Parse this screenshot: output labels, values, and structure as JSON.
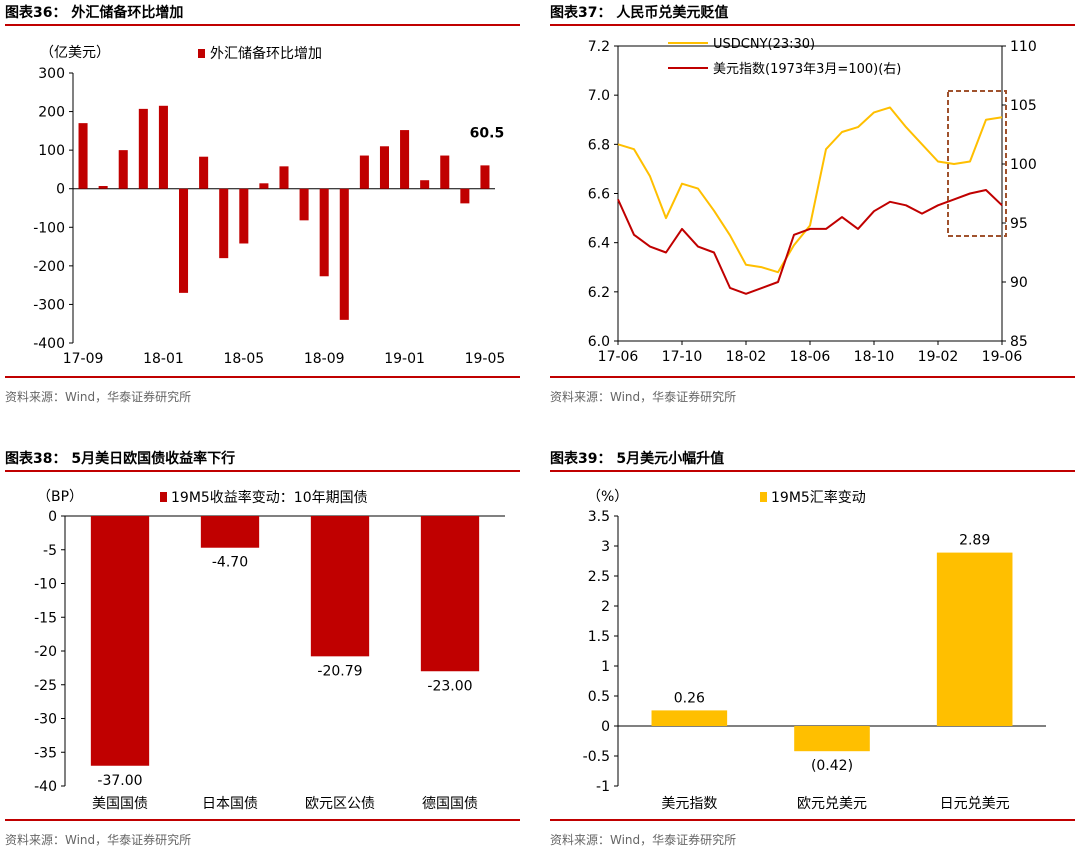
{
  "colors": {
    "red": "#c00000",
    "gold": "#ffbf00",
    "axis": "#000000",
    "source_text": "#666666",
    "highlight": "#a0522d"
  },
  "panels": {
    "p36": {
      "title": "图表36： 外汇储备环比增加",
      "source": "资料来源：Wind，华泰证券研究所"
    },
    "p37": {
      "title": "图表37： 人民币兑美元贬值",
      "source": "资料来源：Wind，华泰证券研究所"
    },
    "p38": {
      "title": "图表38： 5月美日欧国债收益率下行",
      "source": "资料来源：Wind，华泰证券研究所"
    },
    "p39": {
      "title": "图表39： 5月美元小幅升值",
      "source": "资料来源：Wind，华泰证券研究所"
    }
  },
  "chart_data": [
    {
      "id": "fx-reserves",
      "type": "bar",
      "unit": "（亿美元）",
      "series": [
        {
          "name": "外汇储备环比增加",
          "color": "#c00000",
          "categories": [
            "17-09",
            "17-10",
            "17-11",
            "17-12",
            "18-01",
            "18-02",
            "18-03",
            "18-04",
            "18-05",
            "18-06",
            "18-07",
            "18-08",
            "18-09",
            "18-10",
            "18-11",
            "18-12",
            "19-01",
            "19-02",
            "19-03",
            "19-04",
            "19-05"
          ],
          "values": [
            170,
            7,
            100,
            207,
            215,
            -270,
            83,
            -180,
            -142,
            14,
            58,
            -82,
            -227,
            -340,
            86,
            110,
            152,
            22,
            86,
            -38,
            60.5
          ]
        }
      ],
      "x_ticks": [
        "17-09",
        "18-01",
        "18-05",
        "18-09",
        "19-01",
        "19-05"
      ],
      "y_ticks": [
        300,
        200,
        100,
        0,
        -100,
        -200,
        -300,
        -400
      ],
      "ylim": [
        -400,
        300
      ],
      "annotation": {
        "text": "60.5",
        "category": "19-05"
      },
      "legend": "top"
    },
    {
      "id": "cny-usd",
      "type": "line",
      "x_ticks": [
        "17-06",
        "17-10",
        "18-02",
        "18-06",
        "18-10",
        "19-02",
        "19-06"
      ],
      "y_left_ticks": [
        "7.2",
        "7.0",
        "6.8",
        "6.6",
        "6.4",
        "6.2",
        "6.0"
      ],
      "y_left_lim": [
        6.0,
        7.2
      ],
      "y_right_ticks": [
        "110",
        "105",
        "100",
        "95",
        "90",
        "85"
      ],
      "y_right_lim": [
        85,
        110
      ],
      "series": [
        {
          "name": "USDCNY(23:30)",
          "axis": "left",
          "color": "#ffbf00",
          "points": [
            [
              "17-06",
              6.8
            ],
            [
              "17-07",
              6.78
            ],
            [
              "17-08",
              6.67
            ],
            [
              "17-09",
              6.5
            ],
            [
              "17-10",
              6.64
            ],
            [
              "17-11",
              6.62
            ],
            [
              "17-12",
              6.53
            ],
            [
              "18-01",
              6.43
            ],
            [
              "18-02",
              6.31
            ],
            [
              "18-03",
              6.3
            ],
            [
              "18-04",
              6.28
            ],
            [
              "18-05",
              6.39
            ],
            [
              "18-06",
              6.47
            ],
            [
              "18-07",
              6.78
            ],
            [
              "18-08",
              6.85
            ],
            [
              "18-09",
              6.87
            ],
            [
              "18-10",
              6.93
            ],
            [
              "18-11",
              6.95
            ],
            [
              "18-12",
              6.87
            ],
            [
              "19-01",
              6.8
            ],
            [
              "19-02",
              6.73
            ],
            [
              "19-03",
              6.72
            ],
            [
              "19-04",
              6.73
            ],
            [
              "19-05",
              6.9
            ],
            [
              "19-06",
              6.91
            ]
          ]
        },
        {
          "name": "美元指数(1973年3月=100)(右)",
          "axis": "right",
          "color": "#c00000",
          "points": [
            [
              "17-06",
              97.0
            ],
            [
              "17-07",
              94.0
            ],
            [
              "17-08",
              93.0
            ],
            [
              "17-09",
              92.5
            ],
            [
              "17-10",
              94.5
            ],
            [
              "17-11",
              93.0
            ],
            [
              "17-12",
              92.5
            ],
            [
              "18-01",
              89.5
            ],
            [
              "18-02",
              89.0
            ],
            [
              "18-03",
              89.5
            ],
            [
              "18-04",
              90.0
            ],
            [
              "18-05",
              94.0
            ],
            [
              "18-06",
              94.5
            ],
            [
              "18-07",
              94.5
            ],
            [
              "18-08",
              95.5
            ],
            [
              "18-09",
              94.5
            ],
            [
              "18-10",
              96.0
            ],
            [
              "18-11",
              96.8
            ],
            [
              "18-12",
              96.5
            ],
            [
              "19-01",
              95.8
            ],
            [
              "19-02",
              96.5
            ],
            [
              "19-03",
              97.0
            ],
            [
              "19-04",
              97.5
            ],
            [
              "19-05",
              97.8
            ],
            [
              "19-06",
              96.5
            ]
          ]
        }
      ],
      "highlight_box": {
        "from": "19-03",
        "to": "19-06"
      },
      "legend": "top"
    },
    {
      "id": "bond-yields",
      "type": "bar",
      "unit": "（BP）",
      "categories": [
        "美国国债",
        "日本国债",
        "欧元区公债",
        "德国国债"
      ],
      "series": [
        {
          "name": "19M5收益率变动：10年期国债",
          "color": "#c00000",
          "values": [
            -37.0,
            -4.7,
            -20.79,
            -23.0
          ]
        }
      ],
      "data_labels": [
        "-37.00",
        "-4.70",
        "-20.79",
        "-23.00"
      ],
      "y_ticks": [
        0,
        -5,
        -10,
        -15,
        -20,
        -25,
        -30,
        -35,
        -40
      ],
      "ylim": [
        -40,
        0
      ],
      "legend": "top"
    },
    {
      "id": "fx-changes",
      "type": "bar",
      "unit": "（%）",
      "categories": [
        "美元指数",
        "欧元兑美元",
        "日元兑美元"
      ],
      "series": [
        {
          "name": "19M5汇率变动",
          "color": "#ffbf00",
          "values": [
            0.26,
            -0.42,
            2.89
          ]
        }
      ],
      "data_labels": [
        "0.26",
        "(0.42)",
        "2.89"
      ],
      "y_ticks": [
        "3.5",
        "3",
        "2.5",
        "2",
        "1.5",
        "1",
        "0.5",
        "0",
        "-0.5",
        "-1"
      ],
      "ylim": [
        -1,
        3.5
      ],
      "legend": "top"
    }
  ]
}
